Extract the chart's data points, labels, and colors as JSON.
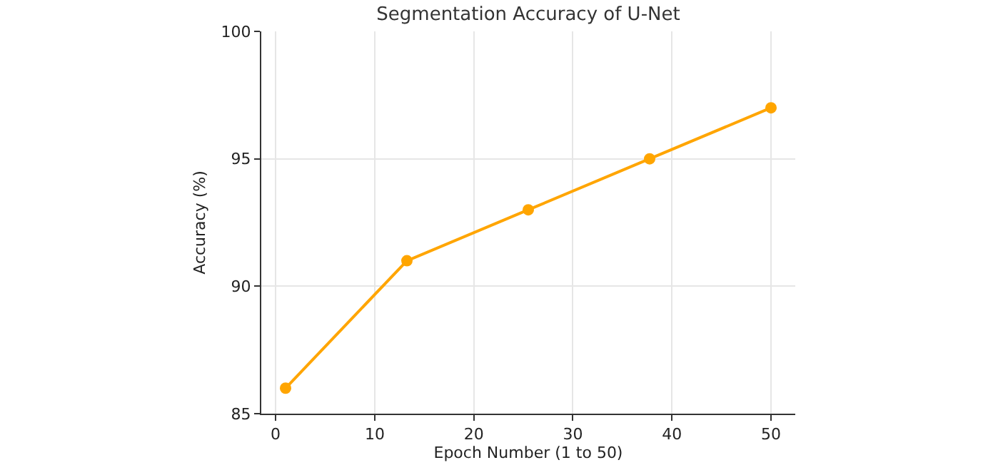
{
  "chart_data": {
    "type": "line",
    "title": "Segmentation Accuracy of U-Net",
    "xlabel": "Epoch Number (1 to 50)",
    "ylabel": "Accuracy (%)",
    "x": [
      1,
      13.25,
      25.5,
      37.75,
      50
    ],
    "series": [
      {
        "color": "#ffa500",
        "values": [
          86,
          91,
          93,
          95,
          97
        ]
      }
    ],
    "xlim": [
      -1.45,
      52.45
    ],
    "xticks": [
      0,
      10,
      20,
      30,
      40,
      50
    ],
    "ylim": [
      85,
      100
    ],
    "yticks": [
      85,
      90,
      95,
      100
    ],
    "grid": true,
    "marker": "circle",
    "line_style": "solid"
  }
}
